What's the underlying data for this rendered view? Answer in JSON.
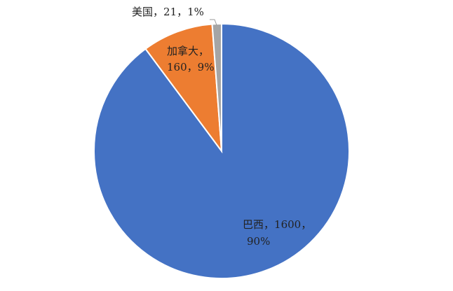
{
  "chart_data": {
    "type": "pie",
    "categories": [
      "巴西",
      "加拿大",
      "美国"
    ],
    "values": [
      1600,
      160,
      21
    ],
    "percent_labels": [
      "90%",
      "9%",
      "1%"
    ],
    "label_separator": "，",
    "colors": [
      "#4472c4",
      "#ed7d31",
      "#a5a5a5"
    ]
  }
}
